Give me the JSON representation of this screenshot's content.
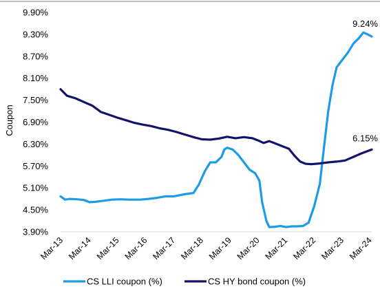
{
  "chart_data": {
    "type": "line",
    "ylabel": "Coupon",
    "xlabel": "",
    "ylim": [
      3.9,
      9.9
    ],
    "y_ticks": [
      "3.90%",
      "4.50%",
      "5.10%",
      "5.70%",
      "6.30%",
      "6.90%",
      "7.50%",
      "8.10%",
      "8.70%",
      "9.30%",
      "9.90%"
    ],
    "x_ticks": [
      "Mar-13",
      "Mar-14",
      "Mar-15",
      "Mar-16",
      "Mar-17",
      "Mar-18",
      "Mar-19",
      "Mar-20",
      "Mar-21",
      "Mar-22",
      "Mar-23",
      "Mar-24"
    ],
    "grid": "none",
    "legend_position": "bottom",
    "series": [
      {
        "name": "CS LLI coupon (%)",
        "color": "#1e9be8",
        "end_label": "9.24%",
        "points": [
          [
            2013.17,
            4.87
          ],
          [
            2013.33,
            4.78
          ],
          [
            2013.5,
            4.8
          ],
          [
            2013.75,
            4.79
          ],
          [
            2014.0,
            4.77
          ],
          [
            2014.2,
            4.71
          ],
          [
            2014.4,
            4.72
          ],
          [
            2014.7,
            4.75
          ],
          [
            2015.0,
            4.78
          ],
          [
            2015.3,
            4.79
          ],
          [
            2015.6,
            4.78
          ],
          [
            2016.0,
            4.78
          ],
          [
            2016.3,
            4.8
          ],
          [
            2016.6,
            4.83
          ],
          [
            2016.9,
            4.87
          ],
          [
            2017.2,
            4.87
          ],
          [
            2017.4,
            4.9
          ],
          [
            2017.6,
            4.93
          ],
          [
            2017.9,
            4.96
          ],
          [
            2018.1,
            5.2
          ],
          [
            2018.3,
            5.55
          ],
          [
            2018.5,
            5.8
          ],
          [
            2018.7,
            5.8
          ],
          [
            2018.9,
            5.95
          ],
          [
            2019.0,
            6.15
          ],
          [
            2019.1,
            6.2
          ],
          [
            2019.3,
            6.15
          ],
          [
            2019.5,
            6.0
          ],
          [
            2019.7,
            5.8
          ],
          [
            2019.9,
            5.6
          ],
          [
            2020.1,
            5.5
          ],
          [
            2020.25,
            5.3
          ],
          [
            2020.35,
            4.7
          ],
          [
            2020.5,
            4.2
          ],
          [
            2020.6,
            4.03
          ],
          [
            2020.8,
            4.04
          ],
          [
            2021.0,
            4.06
          ],
          [
            2021.2,
            4.03
          ],
          [
            2021.4,
            4.05
          ],
          [
            2021.6,
            4.05
          ],
          [
            2021.8,
            4.06
          ],
          [
            2022.0,
            4.15
          ],
          [
            2022.2,
            4.6
          ],
          [
            2022.4,
            5.2
          ],
          [
            2022.55,
            6.2
          ],
          [
            2022.7,
            7.2
          ],
          [
            2022.85,
            7.9
          ],
          [
            2023.0,
            8.4
          ],
          [
            2023.2,
            8.6
          ],
          [
            2023.4,
            8.8
          ],
          [
            2023.6,
            9.05
          ],
          [
            2023.8,
            9.2
          ],
          [
            2023.95,
            9.35
          ],
          [
            2024.1,
            9.3
          ],
          [
            2024.25,
            9.24
          ]
        ]
      },
      {
        "name": "CS HY bond coupon (%)",
        "color": "#13136b",
        "end_label": "6.15%",
        "points": [
          [
            2013.17,
            7.8
          ],
          [
            2013.4,
            7.62
          ],
          [
            2013.7,
            7.55
          ],
          [
            2014.0,
            7.45
          ],
          [
            2014.3,
            7.35
          ],
          [
            2014.6,
            7.18
          ],
          [
            2014.9,
            7.1
          ],
          [
            2015.2,
            7.02
          ],
          [
            2015.5,
            6.95
          ],
          [
            2015.8,
            6.88
          ],
          [
            2016.1,
            6.83
          ],
          [
            2016.4,
            6.79
          ],
          [
            2016.7,
            6.73
          ],
          [
            2017.0,
            6.69
          ],
          [
            2017.3,
            6.63
          ],
          [
            2017.6,
            6.56
          ],
          [
            2017.9,
            6.49
          ],
          [
            2018.2,
            6.43
          ],
          [
            2018.5,
            6.42
          ],
          [
            2018.8,
            6.45
          ],
          [
            2019.1,
            6.5
          ],
          [
            2019.4,
            6.46
          ],
          [
            2019.7,
            6.49
          ],
          [
            2020.0,
            6.46
          ],
          [
            2020.2,
            6.4
          ],
          [
            2020.4,
            6.33
          ],
          [
            2020.6,
            6.38
          ],
          [
            2020.8,
            6.32
          ],
          [
            2021.0,
            6.26
          ],
          [
            2021.3,
            6.17
          ],
          [
            2021.5,
            5.98
          ],
          [
            2021.7,
            5.82
          ],
          [
            2021.9,
            5.76
          ],
          [
            2022.1,
            5.75
          ],
          [
            2022.4,
            5.77
          ],
          [
            2022.7,
            5.8
          ],
          [
            2023.0,
            5.82
          ],
          [
            2023.3,
            5.85
          ],
          [
            2023.6,
            5.95
          ],
          [
            2023.9,
            6.05
          ],
          [
            2024.25,
            6.15
          ]
        ]
      }
    ]
  }
}
